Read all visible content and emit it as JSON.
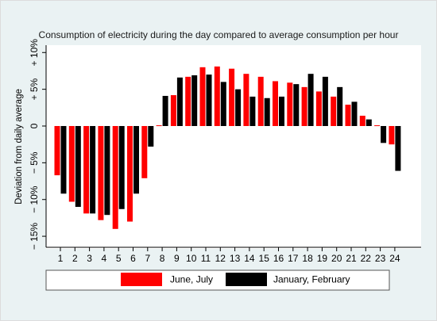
{
  "chart_data": {
    "type": "bar",
    "title": "Consumption of electricity during the day compared to average consumption per hour",
    "ylabel": "Deviation from daily average",
    "xlabel": "",
    "categories": [
      "1",
      "2",
      "3",
      "4",
      "5",
      "6",
      "7",
      "8",
      "9",
      "10",
      "11",
      "12",
      "13",
      "14",
      "15",
      "16",
      "17",
      "18",
      "19",
      "20",
      "21",
      "22",
      "23",
      "24"
    ],
    "y_ticks": [
      {
        "value": -15,
        "label": "− 15%"
      },
      {
        "value": -10,
        "label": "− 10%"
      },
      {
        "value": -5,
        "label": "− 5%"
      },
      {
        "value": 0,
        "label": "0"
      },
      {
        "value": 5,
        "label": "+ 5%"
      },
      {
        "value": 10,
        "label": "+ 10%"
      }
    ],
    "ylim": [
      -16.5,
      11
    ],
    "grid": false,
    "legend_position": "bottom",
    "series": [
      {
        "name": "June, July",
        "color": "#ff0000",
        "values": [
          -6.7,
          -10.3,
          -11.9,
          -12.8,
          -14.0,
          -13.0,
          -7.1,
          0.1,
          4.2,
          6.7,
          8.0,
          8.1,
          7.8,
          7.1,
          6.7,
          6.1,
          5.9,
          5.3,
          4.7,
          4.0,
          2.9,
          1.4,
          0.1,
          -2.5
        ]
      },
      {
        "name": "January, February",
        "color": "#000000",
        "values": [
          -9.2,
          -11.0,
          -11.9,
          -12.1,
          -11.3,
          -9.2,
          -2.8,
          4.1,
          6.6,
          6.9,
          7.0,
          6.0,
          5.0,
          4.0,
          3.8,
          4.0,
          5.7,
          7.1,
          6.7,
          5.3,
          3.3,
          0.9,
          -2.3,
          -6.1
        ]
      }
    ]
  }
}
